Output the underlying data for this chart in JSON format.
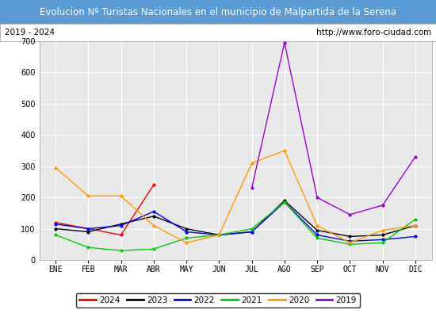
{
  "title": "Evolucion Nº Turistas Nacionales en el municipio de Malpartida de la Serena",
  "subtitle_left": "2019 - 2024",
  "subtitle_right": "http://www.foro-ciudad.com",
  "x_labels": [
    "ENE",
    "FEB",
    "MAR",
    "ABR",
    "MAY",
    "JUN",
    "JUL",
    "AGO",
    "SEP",
    "OCT",
    "NOV",
    "DIC"
  ],
  "ylim": [
    0,
    700
  ],
  "yticks": [
    0,
    100,
    200,
    300,
    400,
    500,
    600,
    700
  ],
  "series": {
    "2024": {
      "color": "#ff0000",
      "data": [
        120,
        100,
        80,
        240,
        null,
        null,
        null,
        null,
        null,
        null,
        null,
        null
      ]
    },
    "2023": {
      "color": "#000000",
      "data": [
        100,
        90,
        115,
        140,
        100,
        80,
        90,
        190,
        95,
        75,
        80,
        110
      ]
    },
    "2022": {
      "color": "#0000ff",
      "data": [
        115,
        100,
        110,
        155,
        90,
        80,
        90,
        185,
        80,
        60,
        65,
        75
      ]
    },
    "2021": {
      "color": "#00cc00",
      "data": [
        80,
        40,
        30,
        35,
        70,
        80,
        100,
        185,
        70,
        50,
        55,
        130
      ]
    },
    "2020": {
      "color": "#ff9900",
      "data": [
        295,
        205,
        205,
        110,
        55,
        80,
        310,
        350,
        110,
        55,
        95,
        110
      ]
    },
    "2019": {
      "color": "#9900cc",
      "data": [
        null,
        null,
        null,
        null,
        null,
        null,
        230,
        695,
        200,
        145,
        175,
        330
      ]
    }
  },
  "title_bg_color": "#5b9bd5",
  "title_text_color": "#ffffff",
  "subtitle_bg_color": "#ffffff",
  "plot_bg_color": "#e8e8e8",
  "grid_color": "#ffffff",
  "fig_bg_color": "#ffffff",
  "legend_order": [
    "2024",
    "2023",
    "2022",
    "2021",
    "2020",
    "2019"
  ],
  "title_fontsize": 8.5,
  "subtitle_fontsize": 7.5,
  "tick_fontsize": 7,
  "legend_fontsize": 7.5
}
